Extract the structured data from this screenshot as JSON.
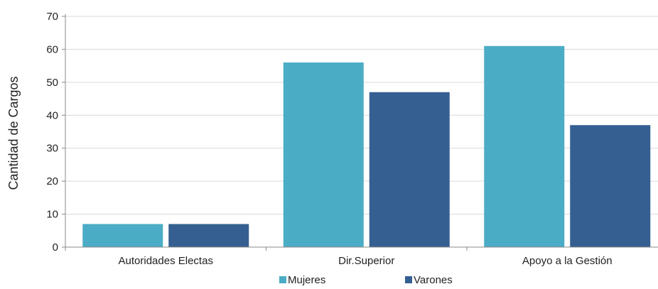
{
  "chart_data": {
    "type": "bar",
    "title": "",
    "xlabel": "",
    "ylabel": "Cantidad de Cargos",
    "ylim": [
      0,
      70
    ],
    "yticks": [
      0,
      10,
      20,
      30,
      40,
      50,
      60,
      70
    ],
    "grid": true,
    "legend_position": "bottom",
    "categories": [
      "Autoridades Electas",
      "Dir.Superior",
      "Apoyo a la Gestión"
    ],
    "series": [
      {
        "name": "Mujeres",
        "values": [
          7,
          56,
          61
        ],
        "color": "#4bacc6"
      },
      {
        "name": "Varones",
        "values": [
          7,
          47,
          37
        ],
        "color": "#355f91"
      }
    ]
  }
}
